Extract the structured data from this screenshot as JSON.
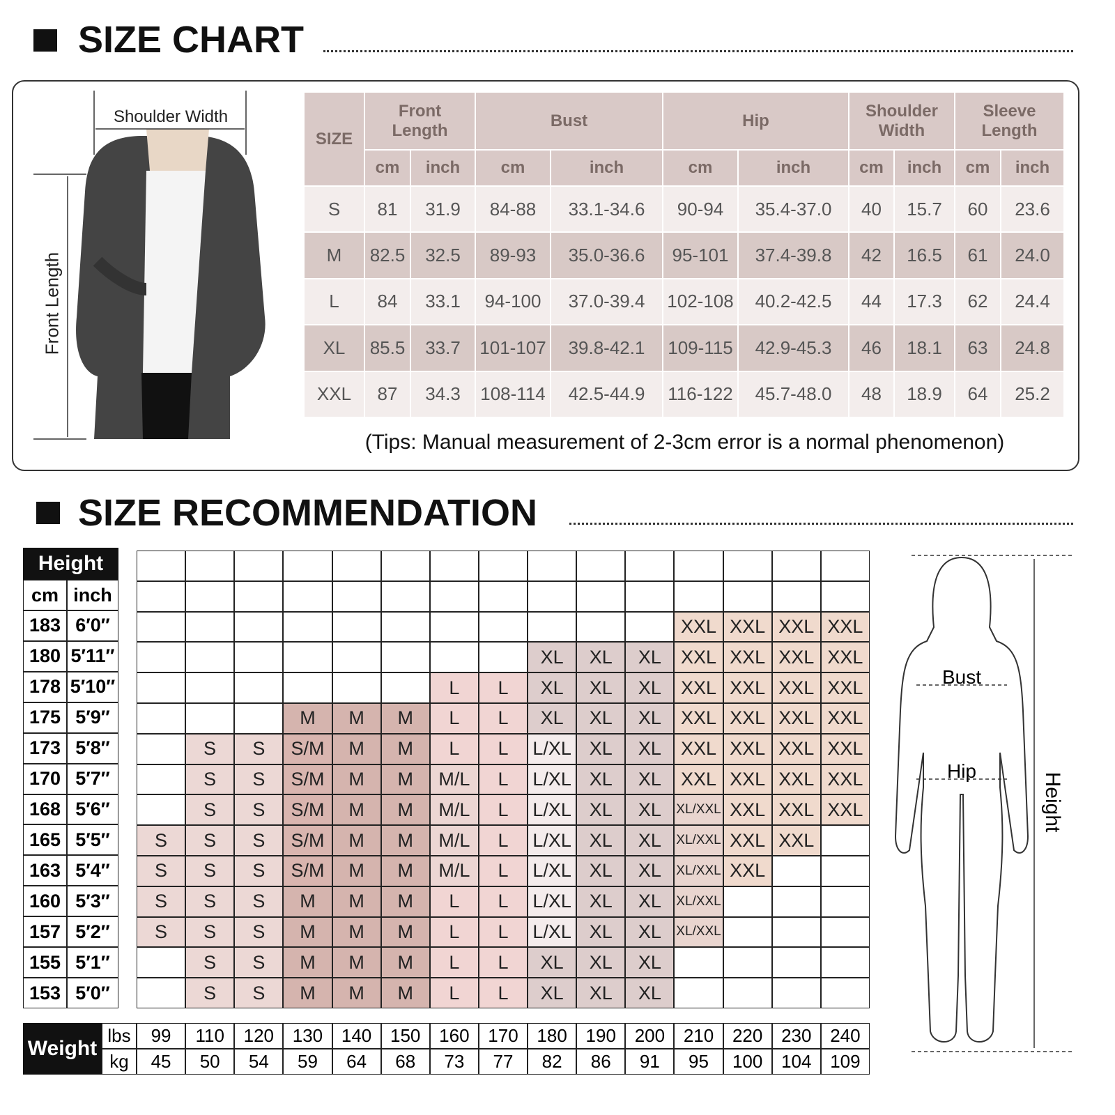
{
  "size_chart": {
    "title": "SIZE CHART",
    "labels": {
      "shoulder_width": "Shoulder Width",
      "front_length": "Front Length"
    },
    "header": {
      "size": "SIZE",
      "groups": [
        {
          "name": "Front Length",
          "units": [
            "cm",
            "inch"
          ]
        },
        {
          "name": "Bust",
          "units": [
            "cm",
            "inch"
          ]
        },
        {
          "name": "Hip",
          "units": [
            "cm",
            "inch"
          ]
        },
        {
          "name": "Shoulder Width",
          "units": [
            "cm",
            "inch"
          ]
        },
        {
          "name": "Sleeve Length",
          "units": [
            "cm",
            "inch"
          ]
        }
      ]
    },
    "rows": [
      [
        "S",
        "81",
        "31.9",
        "84-88",
        "33.1-34.6",
        "90-94",
        "35.4-37.0",
        "40",
        "15.7",
        "60",
        "23.6"
      ],
      [
        "M",
        "82.5",
        "32.5",
        "89-93",
        "35.0-36.6",
        "95-101",
        "37.4-39.8",
        "42",
        "16.5",
        "61",
        "24.0"
      ],
      [
        "L",
        "84",
        "33.1",
        "94-100",
        "37.0-39.4",
        "102-108",
        "40.2-42.5",
        "44",
        "17.3",
        "62",
        "24.4"
      ],
      [
        "XL",
        "85.5",
        "33.7",
        "101-107",
        "39.8-42.1",
        "109-115",
        "42.9-45.3",
        "46",
        "18.1",
        "63",
        "24.8"
      ],
      [
        "XXL",
        "87",
        "34.3",
        "108-114",
        "42.5-44.9",
        "116-122",
        "45.7-48.0",
        "48",
        "18.9",
        "64",
        "25.2"
      ]
    ],
    "tips": "(Tips: Manual measurement of 2-3cm error is a normal phenomenon)"
  },
  "recommendation": {
    "title": "SIZE RECOMMENDATION",
    "height_header": "Height",
    "height_units": [
      "cm",
      "inch"
    ],
    "heights": [
      [
        "183",
        "6′0″"
      ],
      [
        "180",
        "5′11″"
      ],
      [
        "178",
        "5′10″"
      ],
      [
        "175",
        "5′9″"
      ],
      [
        "173",
        "5′8″"
      ],
      [
        "170",
        "5′7″"
      ],
      [
        "168",
        "5′6″"
      ],
      [
        "165",
        "5′5″"
      ],
      [
        "163",
        "5′4″"
      ],
      [
        "160",
        "5′3″"
      ],
      [
        "157",
        "5′2″"
      ],
      [
        "155",
        "5′1″"
      ],
      [
        "153",
        "5′0″"
      ]
    ],
    "grid": [
      [
        null,
        null,
        null,
        null,
        null,
        null,
        null,
        null,
        null,
        null,
        null,
        "XXL",
        "XXL",
        "XXL",
        "XXL"
      ],
      [
        null,
        null,
        null,
        null,
        null,
        null,
        null,
        null,
        "XL",
        "XL",
        "XL",
        "XXL",
        "XXL",
        "XXL",
        "XXL"
      ],
      [
        null,
        null,
        null,
        null,
        null,
        null,
        "L",
        "L",
        "XL",
        "XL",
        "XL",
        "XXL",
        "XXL",
        "XXL",
        "XXL"
      ],
      [
        null,
        null,
        null,
        "M",
        "M",
        "M",
        "L",
        "L",
        "XL",
        "XL",
        "XL",
        "XXL",
        "XXL",
        "XXL",
        "XXL"
      ],
      [
        null,
        "S",
        "S",
        "S/M",
        "M",
        "M",
        "L",
        "L",
        "L/XL",
        "XL",
        "XL",
        "XXL",
        "XXL",
        "XXL",
        "XXL"
      ],
      [
        null,
        "S",
        "S",
        "S/M",
        "M",
        "M",
        "M/L",
        "L",
        "L/XL",
        "XL",
        "XL",
        "XXL",
        "XXL",
        "XXL",
        "XXL"
      ],
      [
        null,
        "S",
        "S",
        "S/M",
        "M",
        "M",
        "M/L",
        "L",
        "L/XL",
        "XL",
        "XL",
        "XL/XXL",
        "XXL",
        "XXL",
        "XXL"
      ],
      [
        "S",
        "S",
        "S",
        "S/M",
        "M",
        "M",
        "M/L",
        "L",
        "L/XL",
        "XL",
        "XL",
        "XL/XXL",
        "XXL",
        "XXL",
        null
      ],
      [
        "S",
        "S",
        "S",
        "S/M",
        "M",
        "M",
        "M/L",
        "L",
        "L/XL",
        "XL",
        "XL",
        "XL/XXL",
        "XXL",
        null,
        null
      ],
      [
        "S",
        "S",
        "S",
        "M",
        "M",
        "M",
        "L",
        "L",
        "L/XL",
        "XL",
        "XL",
        "XL/XXL",
        null,
        null,
        null
      ],
      [
        "S",
        "S",
        "S",
        "M",
        "M",
        "M",
        "L",
        "L",
        "L/XL",
        "XL",
        "XL",
        "XL/XXL",
        null,
        null,
        null
      ],
      [
        null,
        "S",
        "S",
        "M",
        "M",
        "M",
        "L",
        "L",
        "XL",
        "XL",
        "XL",
        null,
        null,
        null,
        null
      ],
      [
        null,
        "S",
        "S",
        "M",
        "M",
        "M",
        "L",
        "L",
        "XL",
        "XL",
        "XL",
        null,
        null,
        null,
        null
      ]
    ],
    "size_colors": {
      "S": "#ecd8d5",
      "S/M": "#d9b5af",
      "M": "#d5b4ae",
      "M/L": "#ecd6d3",
      "L": "#f1d5d3",
      "L/XL": "#f4ecec",
      "XL": "#ddcdcc",
      "XL/XXL": "#e9d5cf",
      "XXL": "#f0dacd"
    },
    "weight_header": "Weight",
    "weight_units": [
      "lbs",
      "kg"
    ],
    "lbs": [
      "99",
      "110",
      "120",
      "130",
      "140",
      "150",
      "160",
      "170",
      "180",
      "190",
      "200",
      "210",
      "220",
      "230",
      "240"
    ],
    "kg": [
      "45",
      "50",
      "54",
      "59",
      "64",
      "68",
      "73",
      "77",
      "82",
      "86",
      "91",
      "95",
      "100",
      "104",
      "109"
    ],
    "body_labels": {
      "bust": "Bust",
      "hip": "Hip",
      "height": "Height"
    }
  }
}
